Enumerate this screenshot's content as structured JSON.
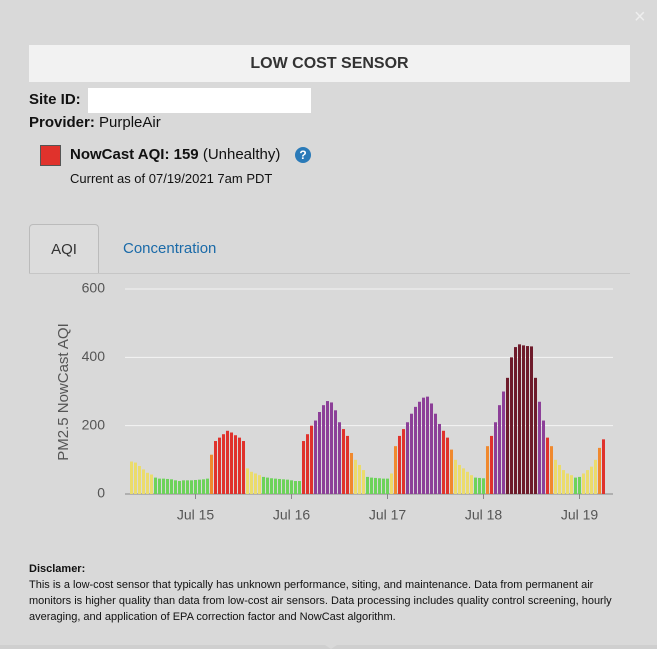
{
  "close": "×",
  "header": {
    "title": "LOW COST SENSOR"
  },
  "site": {
    "site_id_label": "Site ID:",
    "provider_label": "Provider:",
    "provider": "PurpleAir"
  },
  "status": {
    "label": "NowCast AQI:",
    "value": 159,
    "category": "(Unhealthy)",
    "help": "?",
    "color": "#e0322c",
    "updated": "Current as of 07/19/2021 7am PDT"
  },
  "tabs": [
    "AQI",
    "Concentration"
  ],
  "chart_data": {
    "type": "bar",
    "y_label": "PM2.5 NowCast AQI",
    "categories": [
      null,
      null,
      null,
      null,
      null,
      null,
      null,
      null,
      null,
      null,
      null,
      null,
      null,
      null,
      null,
      null,
      "Jul 15",
      null,
      null,
      null,
      null,
      null,
      null,
      null,
      null,
      null,
      null,
      null,
      null,
      null,
      null,
      null,
      null,
      null,
      null,
      null,
      null,
      null,
      null,
      null,
      "Jul 16",
      null,
      null,
      null,
      null,
      null,
      null,
      null,
      null,
      null,
      null,
      null,
      null,
      null,
      null,
      null,
      null,
      null,
      null,
      null,
      null,
      null,
      null,
      null,
      "Jul 17",
      null,
      null,
      null,
      null,
      null,
      null,
      null,
      null,
      null,
      null,
      null,
      null,
      null,
      null,
      null,
      null,
      null,
      null,
      null,
      null,
      null,
      null,
      null,
      "Jul 18",
      null,
      null,
      null,
      null,
      null,
      null,
      null,
      null,
      null,
      null,
      null,
      null,
      null,
      null,
      null,
      null,
      null,
      null,
      null,
      null,
      null,
      null,
      null,
      "Jul 19",
      null,
      null,
      null,
      null,
      null,
      null
    ],
    "values": [
      95,
      92,
      82,
      72,
      62,
      57,
      48,
      45,
      45,
      44,
      43,
      40,
      38,
      40,
      40,
      40,
      41,
      42,
      43,
      45,
      115,
      155,
      165,
      175,
      185,
      180,
      172,
      165,
      155,
      75,
      65,
      60,
      55,
      50,
      48,
      46,
      45,
      44,
      43,
      42,
      40,
      38,
      38,
      155,
      175,
      200,
      215,
      240,
      260,
      272,
      268,
      245,
      210,
      190,
      170,
      120,
      100,
      85,
      70,
      50,
      48,
      47,
      46,
      45,
      45,
      60,
      140,
      170,
      190,
      210,
      235,
      255,
      270,
      282,
      285,
      265,
      235,
      205,
      185,
      165,
      130,
      100,
      85,
      75,
      65,
      55,
      48,
      47,
      46,
      140,
      170,
      210,
      260,
      300,
      340,
      400,
      430,
      438,
      435,
      433,
      432,
      340,
      270,
      215,
      165,
      140,
      100,
      85,
      70,
      60,
      55,
      48,
      50,
      60,
      70,
      80,
      100,
      135,
      160
    ],
    "colors": [
      "#ebdc6c",
      "#ebdc6c",
      "#ebdc6c",
      "#ebdc6c",
      "#ebdc6c",
      "#ebdc6c",
      "#6dd35a",
      "#6dd35a",
      "#6dd35a",
      "#6dd35a",
      "#6dd35a",
      "#6dd35a",
      "#6dd35a",
      "#6dd35a",
      "#6dd35a",
      "#6dd35a",
      "#6dd35a",
      "#6dd35a",
      "#6dd35a",
      "#6dd35a",
      "#f0892e",
      "#e0322c",
      "#e0322c",
      "#e0322c",
      "#e0322c",
      "#e0322c",
      "#e0322c",
      "#e0322c",
      "#e0322c",
      "#ebdc6c",
      "#ebdc6c",
      "#ebdc6c",
      "#ebdc6c",
      "#6dd35a",
      "#6dd35a",
      "#6dd35a",
      "#6dd35a",
      "#6dd35a",
      "#6dd35a",
      "#6dd35a",
      "#6dd35a",
      "#6dd35a",
      "#6dd35a",
      "#e0322c",
      "#e0322c",
      "#e0322c",
      "#8c3f98",
      "#8c3f98",
      "#8c3f98",
      "#8c3f98",
      "#8c3f98",
      "#8c3f98",
      "#8c3f98",
      "#e0322c",
      "#e0322c",
      "#f0892e",
      "#ebdc6c",
      "#ebdc6c",
      "#ebdc6c",
      "#6dd35a",
      "#6dd35a",
      "#6dd35a",
      "#6dd35a",
      "#6dd35a",
      "#6dd35a",
      "#ebdc6c",
      "#f0892e",
      "#e0322c",
      "#e0322c",
      "#8c3f98",
      "#8c3f98",
      "#8c3f98",
      "#8c3f98",
      "#8c3f98",
      "#8c3f98",
      "#8c3f98",
      "#8c3f98",
      "#8c3f98",
      "#e0322c",
      "#e0322c",
      "#f0892e",
      "#ebdc6c",
      "#ebdc6c",
      "#ebdc6c",
      "#ebdc6c",
      "#ebdc6c",
      "#6dd35a",
      "#6dd35a",
      "#6dd35a",
      "#f0892e",
      "#e0322c",
      "#8c3f98",
      "#8c3f98",
      "#8c3f98",
      "#6e1b2b",
      "#6e1b2b",
      "#6e1b2b",
      "#6e1b2b",
      "#6e1b2b",
      "#6e1b2b",
      "#6e1b2b",
      "#6e1b2b",
      "#8c3f98",
      "#8c3f98",
      "#e0322c",
      "#f0892e",
      "#ebdc6c",
      "#ebdc6c",
      "#ebdc6c",
      "#ebdc6c",
      "#ebdc6c",
      "#6dd35a",
      "#6dd35a",
      "#ebdc6c",
      "#ebdc6c",
      "#ebdc6c",
      "#ebdc6c",
      "#f0892e",
      "#e0322c"
    ],
    "ylim": [
      0,
      600
    ],
    "yticks": [
      0,
      200,
      400,
      600
    ],
    "grid": true
  },
  "disclaimer": {
    "title": "Disclamer:",
    "text": "This is a low-cost sensor that typically has unknown performance, siting, and maintenance. Data from permanent air monitors is higher quality than data from low-cost air sensors. Data processing includes quality control screening, hourly averaging, and application of EPA correction factor and NowCast algorithm."
  }
}
